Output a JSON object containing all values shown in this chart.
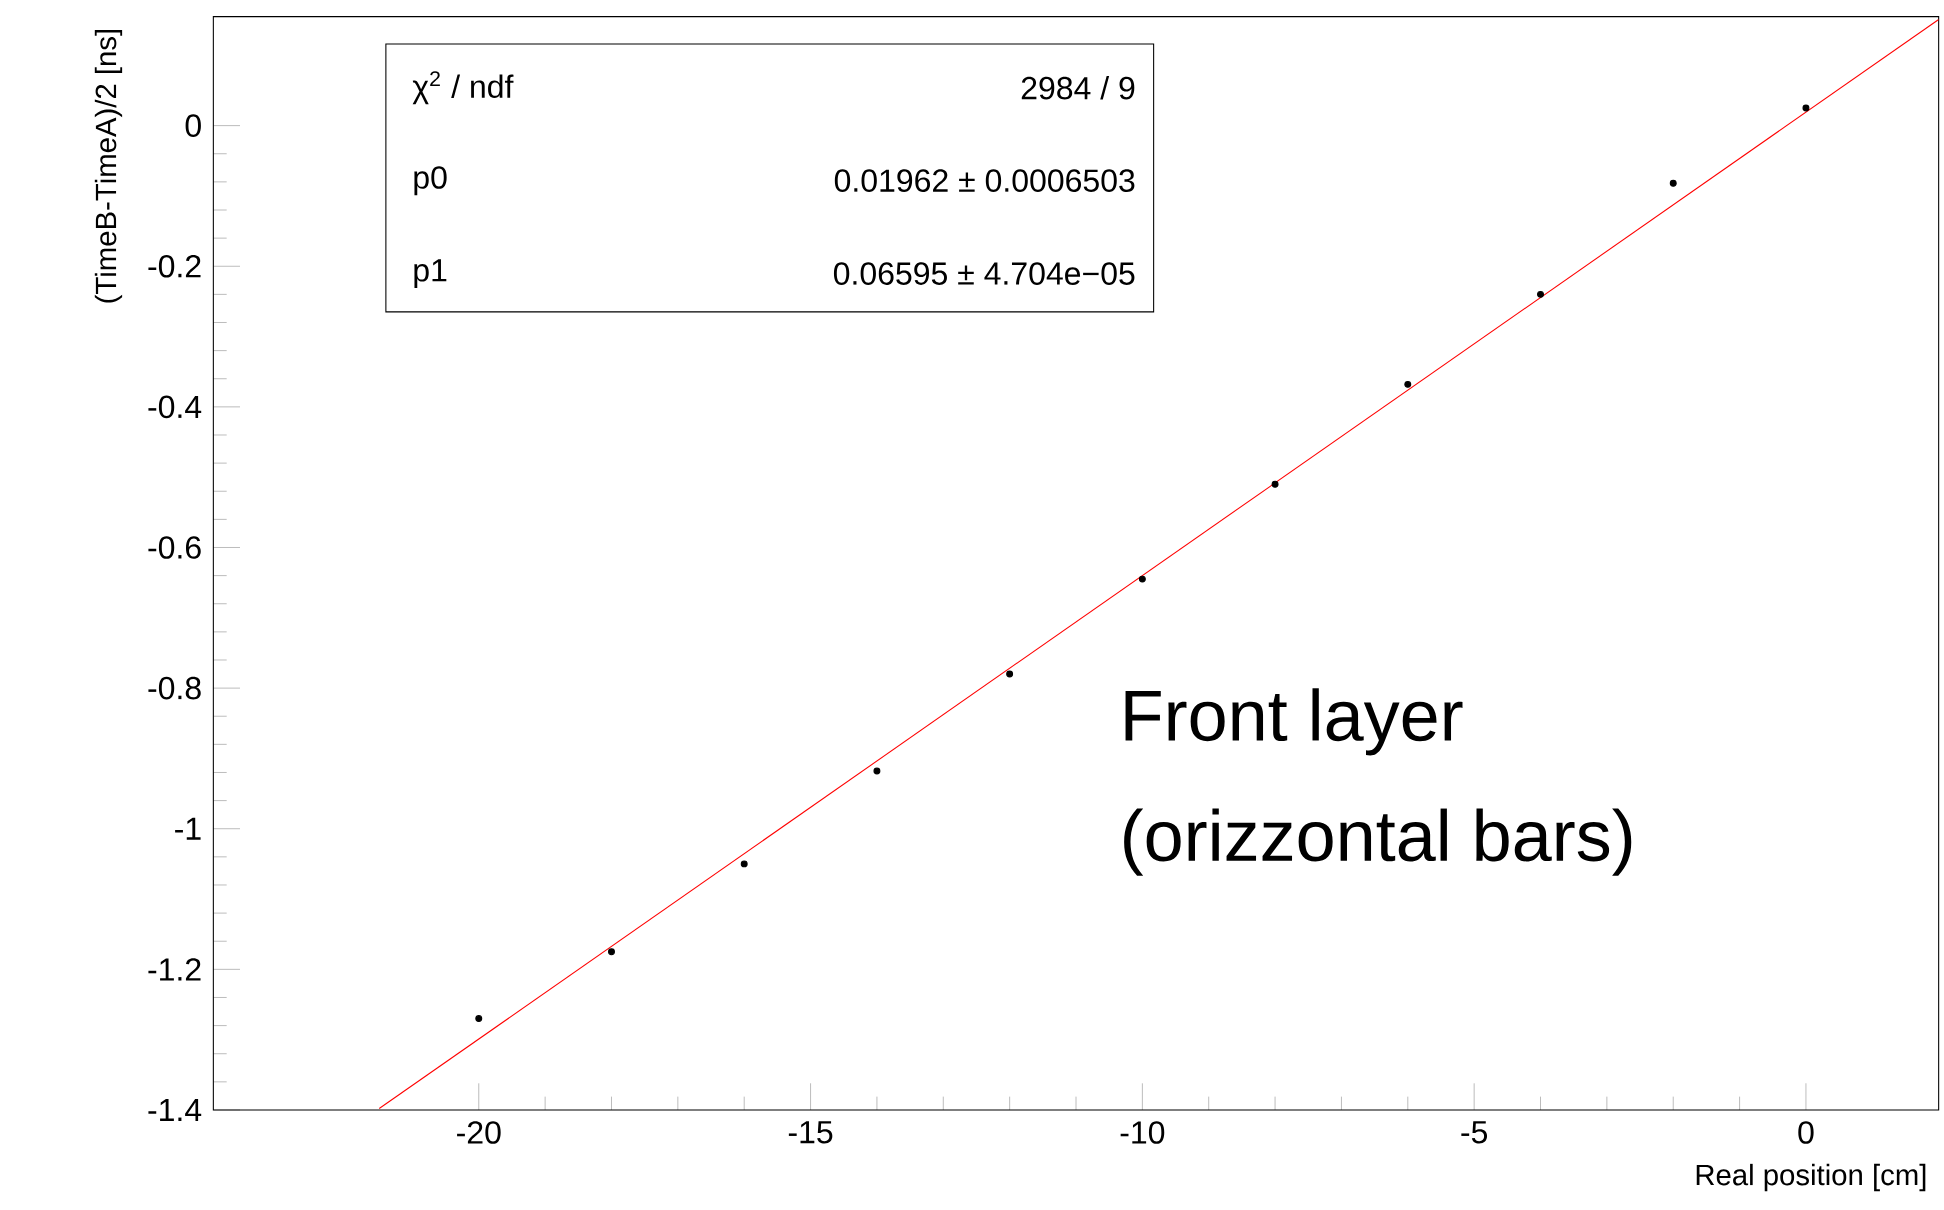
{
  "chart_data": {
    "type": "scatter",
    "xlabel": "Real position [cm]",
    "ylabel": "(TimeB-TimeA)/2 [ns]",
    "xlim": [
      -24,
      2
    ],
    "ylim": [
      -1.4,
      0.155
    ],
    "xticks": [
      -20,
      -15,
      -10,
      -5,
      0
    ],
    "yticks": [
      -1.4,
      -1.2,
      -1,
      -0.8,
      -0.6,
      -0.4,
      -0.2,
      0
    ],
    "grid": false,
    "series": [
      {
        "marker": "circle",
        "color": "#000000",
        "x": [
          -20,
          -18,
          -16,
          -14,
          -12,
          -10,
          -8,
          -6,
          -4,
          -2,
          0
        ],
        "values": [
          -1.27,
          -1.175,
          -1.05,
          -0.918,
          -0.78,
          -0.645,
          -0.51,
          -0.368,
          -0.24,
          -0.082,
          0.025
        ]
      },
      {
        "type": "line",
        "color": "#ff0000",
        "marker": "none",
        "line_style": "solid",
        "x": [
          -21.5,
          2
        ],
        "values": [
          -1.398,
          0.151
        ]
      }
    ],
    "annotations": [
      "χ$^{2}$ / ndf",
      "2984 / 9",
      "p0",
      "0.01962 ± 0.0006503",
      "p1",
      "0.06595 ± 4.704e−05",
      "Front layer",
      "(orizzontal bars)"
    ]
  }
}
